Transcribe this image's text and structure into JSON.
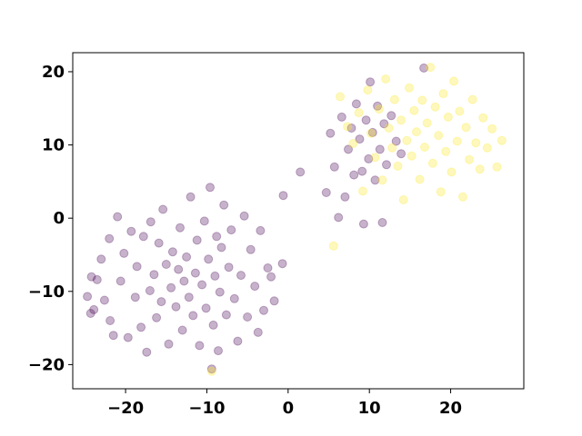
{
  "chart_data": {
    "type": "scatter",
    "title": "",
    "xlabel": "",
    "ylabel": "",
    "xlim": [
      -26.5,
      29.0
    ],
    "ylim": [
      -23.3,
      22.6
    ],
    "xticks": [
      -20,
      -10,
      0,
      10,
      20
    ],
    "yticks": [
      -20,
      -10,
      0,
      10,
      20
    ],
    "xtick_labels": [
      "−20",
      "−10",
      "0",
      "10",
      "20"
    ],
    "ytick_labels": [
      "−20",
      "−10",
      "0",
      "10",
      "20"
    ],
    "grid": false,
    "legend": false,
    "colors": {
      "class_0": "#440154",
      "class_1": "#fde725",
      "marker_alpha": 0.3
    },
    "series": [
      {
        "values": [
          [
            -24.7,
            -10.7
          ],
          [
            -24.3,
            -13.0
          ],
          [
            -24.2,
            -8.0
          ],
          [
            -23.9,
            -12.5
          ],
          [
            -23.5,
            -8.4
          ],
          [
            -23.0,
            -5.6
          ],
          [
            -22.6,
            -11.2
          ],
          [
            -22.0,
            -2.8
          ],
          [
            -21.9,
            -14.0
          ],
          [
            -21.5,
            -16.0
          ],
          [
            -21.0,
            0.2
          ],
          [
            -20.6,
            -8.6
          ],
          [
            -20.2,
            -4.8
          ],
          [
            -19.7,
            -16.3
          ],
          [
            -19.3,
            -1.8
          ],
          [
            -18.8,
            -10.8
          ],
          [
            -18.6,
            -6.6
          ],
          [
            -18.1,
            -14.9
          ],
          [
            -17.8,
            -2.5
          ],
          [
            -17.4,
            -18.3
          ],
          [
            -17.0,
            -9.9
          ],
          [
            -16.9,
            -0.5
          ],
          [
            -16.5,
            -7.7
          ],
          [
            -16.2,
            -13.6
          ],
          [
            -15.9,
            -3.4
          ],
          [
            -15.6,
            -11.4
          ],
          [
            -15.4,
            1.2
          ],
          [
            -15.0,
            -6.3
          ],
          [
            -14.7,
            -17.2
          ],
          [
            -14.4,
            -9.5
          ],
          [
            -14.2,
            -4.6
          ],
          [
            -13.8,
            -12.1
          ],
          [
            -13.5,
            -7.0
          ],
          [
            -13.3,
            -1.3
          ],
          [
            -13.0,
            -15.3
          ],
          [
            -12.8,
            -8.6
          ],
          [
            -12.5,
            -5.3
          ],
          [
            -12.2,
            -10.8
          ],
          [
            -12.0,
            2.9
          ],
          [
            -11.7,
            -13.3
          ],
          [
            -11.4,
            -7.5
          ],
          [
            -11.2,
            -3.0
          ],
          [
            -10.9,
            -17.4
          ],
          [
            -10.6,
            -9.1
          ],
          [
            -10.3,
            -0.4
          ],
          [
            -10.1,
            -12.3
          ],
          [
            -9.8,
            -5.6
          ],
          [
            -9.6,
            4.2
          ],
          [
            -9.4,
            -20.6
          ],
          [
            -9.2,
            -14.6
          ],
          [
            -9.0,
            -7.9
          ],
          [
            -8.8,
            -2.5
          ],
          [
            -8.6,
            -18.1
          ],
          [
            -8.4,
            -10.1
          ],
          [
            -8.2,
            -4.0
          ],
          [
            -7.9,
            1.8
          ],
          [
            -7.6,
            -13.2
          ],
          [
            -7.3,
            -6.7
          ],
          [
            -7.0,
            -1.6
          ],
          [
            -6.6,
            -11.0
          ],
          [
            -6.2,
            -16.8
          ],
          [
            -5.8,
            -7.8
          ],
          [
            -5.4,
            0.3
          ],
          [
            -5.0,
            -13.5
          ],
          [
            -4.6,
            -4.3
          ],
          [
            -4.1,
            -9.3
          ],
          [
            -3.7,
            -15.6
          ],
          [
            -3.4,
            -1.7
          ],
          [
            -3.0,
            -12.6
          ],
          [
            -2.5,
            -6.8
          ],
          [
            -2.1,
            -8.0
          ],
          [
            -1.7,
            -11.3
          ],
          [
            -0.7,
            -6.2
          ],
          [
            -0.6,
            3.1
          ],
          [
            1.5,
            6.3
          ],
          [
            4.7,
            3.5
          ],
          [
            5.2,
            11.6
          ],
          [
            5.7,
            7.0
          ],
          [
            6.2,
            0.1
          ],
          [
            6.6,
            13.8
          ],
          [
            7.0,
            2.9
          ],
          [
            7.4,
            9.4
          ],
          [
            7.8,
            12.3
          ],
          [
            8.1,
            5.9
          ],
          [
            8.4,
            15.6
          ],
          [
            8.8,
            10.8
          ],
          [
            9.1,
            6.4
          ],
          [
            9.3,
            -0.8
          ],
          [
            9.6,
            13.4
          ],
          [
            9.9,
            8.1
          ],
          [
            10.1,
            18.6
          ],
          [
            10.4,
            11.7
          ],
          [
            10.7,
            5.2
          ],
          [
            11.0,
            15.3
          ],
          [
            11.3,
            9.4
          ],
          [
            11.6,
            -0.6
          ],
          [
            11.8,
            12.9
          ],
          [
            12.1,
            7.3
          ],
          [
            12.7,
            14.0
          ],
          [
            13.3,
            10.5
          ],
          [
            13.9,
            8.8
          ],
          [
            16.7,
            20.5
          ]
        ]
      },
      {
        "values": [
          [
            5.6,
            -3.8
          ],
          [
            6.4,
            16.6
          ],
          [
            7.3,
            12.5
          ],
          [
            8.0,
            10.2
          ],
          [
            8.7,
            14.4
          ],
          [
            9.2,
            3.7
          ],
          [
            9.8,
            17.5
          ],
          [
            10.2,
            11.6
          ],
          [
            10.7,
            8.3
          ],
          [
            11.2,
            14.9
          ],
          [
            11.6,
            5.2
          ],
          [
            12.0,
            19.0
          ],
          [
            12.4,
            12.3
          ],
          [
            12.8,
            9.6
          ],
          [
            13.1,
            16.2
          ],
          [
            13.5,
            7.1
          ],
          [
            13.9,
            13.4
          ],
          [
            14.2,
            2.5
          ],
          [
            14.6,
            10.6
          ],
          [
            14.9,
            17.8
          ],
          [
            15.2,
            8.5
          ],
          [
            15.5,
            14.7
          ],
          [
            15.8,
            11.8
          ],
          [
            16.2,
            5.3
          ],
          [
            16.5,
            16.1
          ],
          [
            16.8,
            9.7
          ],
          [
            17.1,
            13.0
          ],
          [
            17.5,
            20.6
          ],
          [
            17.8,
            7.5
          ],
          [
            18.1,
            15.2
          ],
          [
            18.5,
            11.3
          ],
          [
            18.8,
            3.6
          ],
          [
            19.1,
            17.0
          ],
          [
            19.4,
            9.1
          ],
          [
            19.7,
            13.8
          ],
          [
            20.1,
            6.3
          ],
          [
            20.4,
            18.7
          ],
          [
            20.8,
            10.5
          ],
          [
            21.1,
            14.6
          ],
          [
            21.5,
            2.9
          ],
          [
            21.9,
            12.4
          ],
          [
            22.3,
            8.0
          ],
          [
            22.7,
            16.2
          ],
          [
            23.1,
            10.3
          ],
          [
            23.6,
            6.7
          ],
          [
            24.0,
            13.7
          ],
          [
            24.5,
            9.6
          ],
          [
            25.1,
            12.2
          ],
          [
            25.7,
            7.0
          ],
          [
            26.3,
            10.6
          ],
          [
            -9.4,
            -20.9
          ]
        ]
      }
    ]
  }
}
